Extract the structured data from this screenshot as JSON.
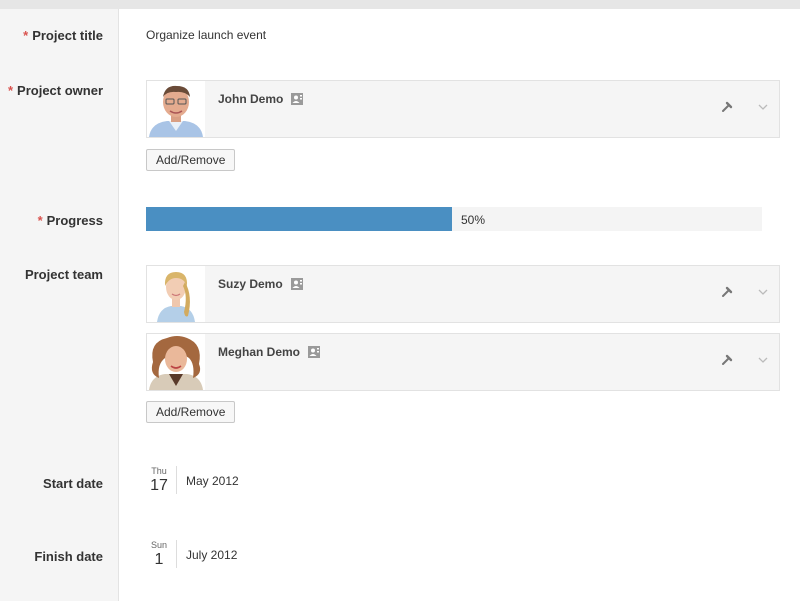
{
  "form": {
    "project_title": {
      "label": "Project title",
      "value": "Organize launch event"
    },
    "project_owner": {
      "label": "Project owner",
      "members": [
        {
          "name": "John Demo",
          "avatar": "male-portrait"
        }
      ],
      "add_remove_label": "Add/Remove"
    },
    "progress": {
      "label": "Progress",
      "percent": 50,
      "text": "50%",
      "color": "#4a8fc2"
    },
    "project_team": {
      "label": "Project team",
      "members": [
        {
          "name": "Suzy Demo",
          "avatar": "female-portrait-blonde"
        },
        {
          "name": "Meghan Demo",
          "avatar": "female-portrait-curly"
        }
      ],
      "add_remove_label": "Add/Remove"
    },
    "start_date": {
      "label": "Start date",
      "day_of_week": "Thu",
      "day": "17",
      "month_year": "May 2012"
    },
    "finish_date": {
      "label": "Finish date",
      "day_of_week": "Sun",
      "day": "1",
      "month_year": "July 2012"
    }
  },
  "icons": {
    "required": "asterisk",
    "contact": "contact-card-icon",
    "edit": "wrench-icon",
    "expand": "chevron-down-icon"
  },
  "colors": {
    "required_marker": "#d9534f",
    "accent": "#4a8fc2"
  }
}
